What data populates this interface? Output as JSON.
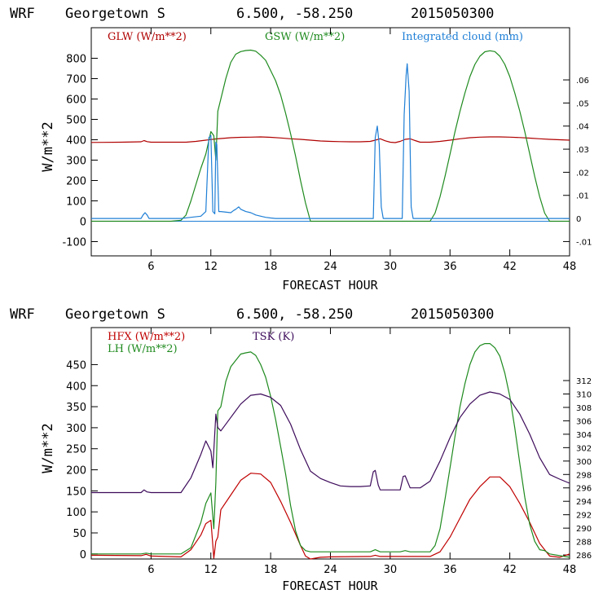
{
  "colors": {
    "glw": "#b00000",
    "gsw": "#1e8a1e",
    "cloud": "#1f7fd6",
    "hfx": "#c00000",
    "lh": "#1e8a1e",
    "tsk": "#3c0a5a",
    "axis": "#000000"
  },
  "chart_data": [
    {
      "type": "line",
      "header": {
        "model": "WRF",
        "location": "Georgetown S",
        "coords": "6.500, -58.250",
        "date": "2015050300"
      },
      "xlabel": "FORECAST HOUR",
      "ylabel": "W/m**2",
      "xlim": [
        0,
        48
      ],
      "ylim": [
        -170,
        950
      ],
      "xticks": [
        6,
        12,
        18,
        24,
        30,
        36,
        42,
        48
      ],
      "xtick_labels": [
        "6",
        "12",
        "18",
        "24",
        "30",
        "36",
        "42",
        "48"
      ],
      "yticks": [
        -100,
        0,
        100,
        200,
        300,
        400,
        500,
        600,
        700,
        800
      ],
      "ytick_labels": [
        "-100",
        "0",
        "100",
        "200",
        "300",
        "400",
        "500",
        "600",
        "700",
        "800"
      ],
      "y2lim": [
        -0.0162,
        0.0826
      ],
      "y2ticks": [
        -0.01,
        0,
        0.01,
        0.02,
        0.03,
        0.04,
        0.05,
        0.06
      ],
      "y2tick_labels": [
        "-.01",
        "0",
        ".01",
        ".02",
        ".03",
        ".04",
        ".05",
        ".06"
      ],
      "grid": false,
      "legend_placement": "top",
      "series": [
        {
          "name": "GLW (W/m**2)",
          "color_key": "glw",
          "axis": "left",
          "x": [
            0,
            3,
            5,
            5.3,
            5.6,
            6,
            8,
            9.5,
            10.5,
            11.5,
            12.5,
            13,
            14,
            15,
            16,
            17,
            18,
            19,
            20,
            21,
            22,
            23,
            24,
            25,
            26,
            27,
            28,
            28.5,
            29,
            29.5,
            30,
            30.5,
            31,
            31.5,
            32,
            32.5,
            33,
            34,
            35,
            36,
            37,
            38,
            39,
            40,
            41,
            42,
            43,
            44,
            45,
            46,
            47,
            48
          ],
          "y": [
            387,
            388,
            390,
            396,
            391,
            388,
            388,
            388,
            392,
            398,
            404,
            406,
            410,
            412,
            413,
            414,
            412,
            409,
            405,
            402,
            398,
            394,
            392,
            391,
            390,
            390,
            392,
            398,
            405,
            395,
            388,
            386,
            392,
            402,
            405,
            396,
            388,
            388,
            392,
            398,
            405,
            410,
            413,
            414,
            414,
            413,
            411,
            408,
            405,
            402,
            400,
            398
          ]
        },
        {
          "name": "GSW (W/m**2)",
          "color_key": "gsw",
          "axis": "left",
          "x": [
            0,
            8,
            9,
            9.5,
            10,
            10.5,
            11,
            11.5,
            12,
            12.3,
            12.5,
            12.7,
            13,
            13.5,
            14,
            14.5,
            15,
            15.5,
            16,
            16.5,
            17,
            17.5,
            18,
            18.5,
            19,
            19.5,
            20,
            20.5,
            21,
            21.5,
            22,
            34,
            34.5,
            35,
            35.5,
            36,
            36.5,
            37,
            37.5,
            38,
            38.5,
            39,
            39.5,
            40,
            40.5,
            41,
            41.5,
            42,
            42.5,
            43,
            43.5,
            44,
            44.5,
            45,
            45.5,
            46,
            48
          ],
          "y": [
            0,
            0,
            5,
            30,
            100,
            180,
            260,
            330,
            440,
            420,
            300,
            540,
            600,
            700,
            780,
            820,
            833,
            838,
            840,
            835,
            815,
            790,
            740,
            690,
            620,
            530,
            430,
            320,
            200,
            90,
            0,
            0,
            40,
            120,
            220,
            330,
            440,
            540,
            630,
            710,
            770,
            810,
            832,
            837,
            833,
            810,
            770,
            710,
            630,
            540,
            440,
            330,
            220,
            120,
            40,
            0,
            0
          ]
        },
        {
          "name": "Integrated cloud (mm)",
          "color_key": "cloud",
          "axis": "right",
          "x": [
            0,
            5,
            5.2,
            5.4,
            5.6,
            5.8,
            6,
            9,
            10,
            11,
            11.5,
            11.8,
            12,
            12.2,
            12.4,
            12.5,
            12.6,
            12.8,
            13,
            14,
            14.3,
            14.5,
            14.8,
            15,
            15.5,
            16,
            16.5,
            17,
            17.5,
            18,
            18.5,
            28.3,
            28.5,
            28.7,
            28.9,
            29.1,
            29.3,
            29.5,
            31.2,
            31.4,
            31.6,
            31.7,
            31.9,
            32.1,
            32.3,
            48
          ],
          "y": [
            0,
            0,
            0.0015,
            0.0025,
            0.0015,
            0,
            0,
            0,
            0.0005,
            0.001,
            0.003,
            0.035,
            0.036,
            0.003,
            0.002,
            0.033,
            0.032,
            0.003,
            0.003,
            0.0025,
            0.0035,
            0.004,
            0.005,
            0.004,
            0.003,
            0.0025,
            0.0015,
            0.001,
            0.0005,
            0.0002,
            0,
            0,
            0.035,
            0.04,
            0.032,
            0.005,
            0,
            0,
            0,
            0.045,
            0.062,
            0.067,
            0.055,
            0.005,
            0,
            0
          ]
        }
      ]
    },
    {
      "type": "line",
      "header": {
        "model": "WRF",
        "location": "Georgetown S",
        "coords": "6.500, -58.250",
        "date": "2015050300"
      },
      "xlabel": "FORECAST HOUR",
      "ylabel": "W/m**2",
      "xlim": [
        0,
        48
      ],
      "ylim": [
        -12,
        538
      ],
      "xticks": [
        6,
        12,
        18,
        24,
        30,
        36,
        42,
        48
      ],
      "xtick_labels": [
        "6",
        "12",
        "18",
        "24",
        "30",
        "36",
        "42",
        "48"
      ],
      "yticks": [
        0,
        50,
        100,
        150,
        200,
        250,
        300,
        350,
        400,
        450
      ],
      "ytick_labels": [
        "0",
        "50",
        "100",
        "150",
        "200",
        "250",
        "300",
        "350",
        "400",
        "450"
      ],
      "y2lim": [
        285.4,
        319.9
      ],
      "y2ticks": [
        286,
        288,
        290,
        292,
        294,
        296,
        298,
        300,
        302,
        304,
        306,
        308,
        310,
        312
      ],
      "y2tick_labels": [
        "286",
        "288",
        "290",
        "292",
        "294",
        "296",
        "298",
        "300",
        "302",
        "304",
        "306",
        "308",
        "310",
        "312"
      ],
      "grid": false,
      "legend_placement": "top-left",
      "series": [
        {
          "name": "HFX (W/m**2)",
          "color_key": "hfx",
          "axis": "left",
          "x": [
            0,
            5,
            5.5,
            6,
            9,
            10,
            11,
            11.5,
            12,
            12.3,
            12.5,
            12.7,
            13,
            14,
            15,
            16,
            17,
            18,
            19,
            20,
            21,
            21.5,
            22,
            23,
            24,
            28,
            28.5,
            29,
            30,
            34,
            35,
            36,
            37,
            38,
            39,
            40,
            41,
            42,
            43,
            44,
            45,
            46,
            47,
            48
          ],
          "y": [
            -3,
            -4,
            -1,
            -5,
            -7,
            10,
            45,
            72,
            80,
            -10,
            30,
            40,
            105,
            140,
            175,
            192,
            190,
            170,
            125,
            75,
            20,
            -5,
            -12,
            -8,
            -7,
            -6,
            -3,
            -6,
            -6,
            -6,
            5,
            40,
            85,
            130,
            160,
            183,
            183,
            160,
            120,
            75,
            25,
            -5,
            -8,
            0
          ]
        },
        {
          "name": "LH (W/m**2)",
          "color_key": "lh",
          "axis": "left",
          "x": [
            0,
            5,
            5.5,
            6,
            9,
            10,
            11,
            11.5,
            12,
            12.3,
            12.5,
            12.7,
            13,
            13.5,
            14,
            14.5,
            15,
            15.5,
            16,
            16.5,
            17,
            17.5,
            18,
            18.5,
            19,
            19.5,
            20,
            20.5,
            21,
            21.5,
            22,
            28,
            28.5,
            29,
            31,
            31.5,
            32,
            34,
            34.5,
            35,
            35.5,
            36,
            36.5,
            37,
            37.5,
            38,
            38.5,
            39,
            39.5,
            40,
            40.5,
            41,
            41.5,
            42,
            42.5,
            43,
            43.5,
            44,
            44.5,
            45,
            45.5,
            46,
            48
          ],
          "y": [
            0,
            0,
            2,
            0,
            0,
            15,
            75,
            120,
            145,
            60,
            170,
            340,
            350,
            410,
            445,
            460,
            475,
            478,
            480,
            472,
            450,
            420,
            375,
            320,
            255,
            190,
            115,
            55,
            20,
            8,
            5,
            5,
            10,
            5,
            5,
            8,
            5,
            5,
            20,
            60,
            130,
            205,
            280,
            350,
            405,
            450,
            480,
            495,
            500,
            500,
            490,
            470,
            430,
            375,
            300,
            215,
            135,
            70,
            30,
            10,
            8,
            0,
            -8
          ]
        },
        {
          "name": "TSK (K)",
          "color_key": "tsk",
          "axis": "right",
          "x": [
            0,
            5,
            5.3,
            5.6,
            6,
            9,
            10,
            11,
            11.5,
            12,
            12.2,
            12.5,
            12.7,
            13,
            14,
            15,
            16,
            17,
            18,
            19,
            20,
            21,
            22,
            23,
            24,
            25,
            26,
            27,
            28,
            28.3,
            28.5,
            28.8,
            29,
            30,
            31,
            31.3,
            31.5,
            32,
            33,
            34,
            35,
            36,
            37,
            38,
            39,
            40,
            41,
            42,
            43,
            44,
            45,
            46,
            47,
            48
          ],
          "y": [
            295.3,
            295.3,
            295.7,
            295.4,
            295.3,
            295.3,
            297.5,
            301,
            303,
            301.5,
            299,
            307,
            305,
            304.5,
            306.5,
            308.5,
            309.8,
            310,
            309.5,
            308.3,
            305.5,
            301.7,
            298.5,
            297.4,
            296.8,
            296.3,
            296.2,
            296.2,
            296.3,
            298.4,
            298.6,
            296.4,
            295.7,
            295.7,
            295.7,
            297.7,
            297.8,
            296,
            296,
            297,
            300,
            303.5,
            306.5,
            308.5,
            309.8,
            310.3,
            310,
            309.2,
            307,
            304,
            300.5,
            298,
            297.3,
            296.7
          ]
        }
      ]
    }
  ]
}
